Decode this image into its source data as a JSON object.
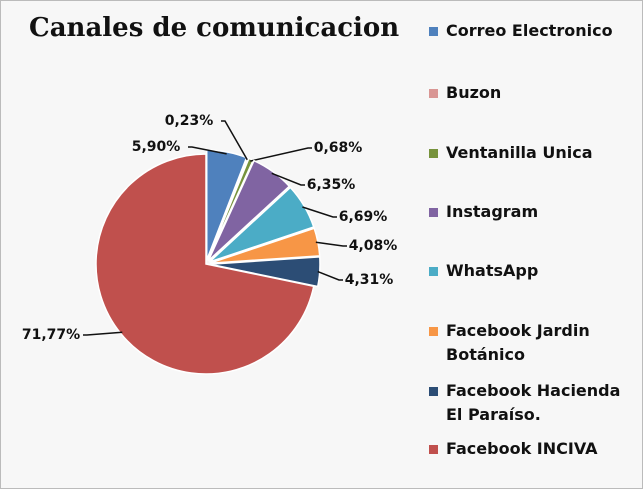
{
  "chart_data": {
    "type": "pie",
    "title": "Canales de comunicacion",
    "categories": [
      "Correo Electronico",
      "Buzon",
      "Ventanilla Unica",
      "Instagram",
      "WhatsApp",
      "Facebook Jardin Botánico",
      "Facebook Hacienda El Paraíso.",
      "Facebook INCIVA"
    ],
    "values": [
      5.9,
      0.23,
      0.68,
      6.35,
      6.69,
      4.08,
      4.31,
      71.77
    ],
    "value_labels": [
      "5,90%",
      "0,23%",
      "0,68%",
      "6,35%",
      "6,69%",
      "4,08%",
      "4,31%",
      "71,77%"
    ],
    "colors": [
      "#4f81bd",
      "#d99694",
      "#77933c",
      "#8064a2",
      "#4bacc6",
      "#f79646",
      "#2c4d75",
      "#c0504d"
    ],
    "legend": "right"
  }
}
